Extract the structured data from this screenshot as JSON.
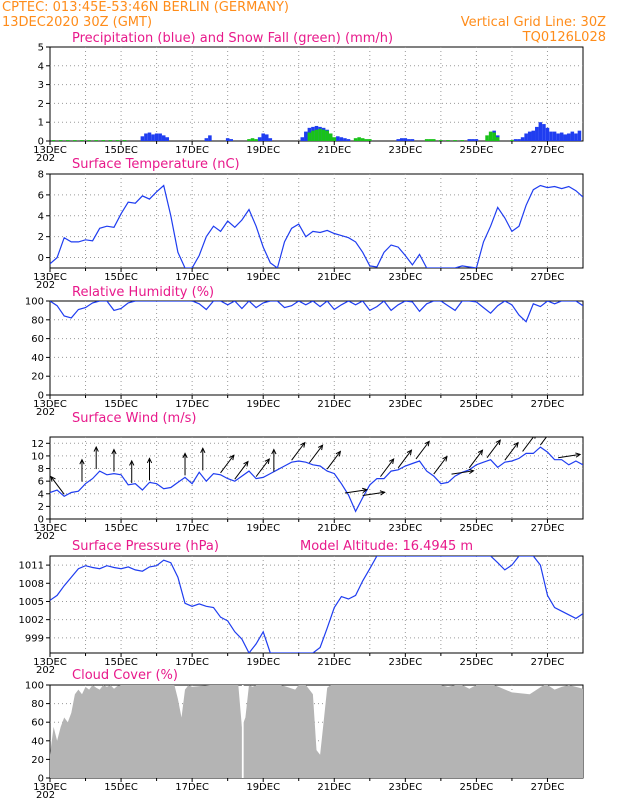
{
  "header": {
    "line1_left": "CPTEC:  013:45E-53:46N  BERLIN (GERMANY)",
    "line2_left": "13DEC2020 30Z (GMT)",
    "line2_right": "Vertical Grid Line: 30Z",
    "line3_right": "TQ0126L028"
  },
  "colors": {
    "header": "#ff8c1a",
    "title": "#e8198b",
    "series": "#1f3df0",
    "snow": "#19c219",
    "cloud": "#b4b4b4",
    "grid": "#9a9a9a"
  },
  "date_labels": [
    "13DEC",
    "15DEC",
    "17DEC",
    "19DEC",
    "21DEC",
    "23DEC",
    "25DEC",
    "27DEC"
  ],
  "year_fragment": "202",
  "chart_data": [
    {
      "type": "bar",
      "title": "Precipitation (blue) and Snow Fall (green) (mm/h)",
      "ylim": [
        0,
        5
      ],
      "yticks": [
        0,
        1,
        2,
        3,
        4,
        5
      ],
      "x_range": [
        0,
        15
      ],
      "series": [
        {
          "name": "Precipitation",
          "color_key": "series",
          "x": [
            2.6,
            2.7,
            2.8,
            2.9,
            3.0,
            3.1,
            3.2,
            3.3,
            4.4,
            4.5,
            5.0,
            5.1,
            5.9,
            6.0,
            6.1,
            6.2,
            7.1,
            7.2,
            7.3,
            7.4,
            7.5,
            7.6,
            7.7,
            7.8,
            7.9,
            8.0,
            8.1,
            8.2,
            8.3,
            8.4,
            9.8,
            9.9,
            10.0,
            10.1,
            10.2,
            11.8,
            11.9,
            12.0,
            12.4,
            12.5,
            12.6,
            13.1,
            13.2,
            13.3,
            13.4,
            13.5,
            13.6,
            13.7,
            13.8,
            13.9,
            14.0,
            14.1,
            14.2,
            14.3,
            14.4,
            14.5,
            14.6,
            14.7,
            14.8,
            14.9
          ],
          "values": [
            0.25,
            0.4,
            0.45,
            0.35,
            0.4,
            0.4,
            0.3,
            0.2,
            0.15,
            0.3,
            0.15,
            0.1,
            0.2,
            0.4,
            0.35,
            0.15,
            0.2,
            0.5,
            0.7,
            0.75,
            0.8,
            0.75,
            0.7,
            0.6,
            0.35,
            0.1,
            0.25,
            0.2,
            0.15,
            0.1,
            0.1,
            0.15,
            0.15,
            0.1,
            0.1,
            0.1,
            0.1,
            0.1,
            0.1,
            0.55,
            0.3,
            0.1,
            0.1,
            0.2,
            0.4,
            0.5,
            0.55,
            0.75,
            1.0,
            0.9,
            0.7,
            0.5,
            0.5,
            0.4,
            0.45,
            0.35,
            0.4,
            0.5,
            0.4,
            0.55
          ]
        },
        {
          "name": "Snow Fall",
          "color_key": "snow",
          "x": [
            0.1,
            0.3,
            0.5,
            0.7,
            0.9,
            1.1,
            1.3,
            1.5,
            1.7,
            1.9,
            2.1,
            5.6,
            5.7,
            5.8,
            7.3,
            7.4,
            7.5,
            7.6,
            7.7,
            7.8,
            7.9,
            8.0,
            8.6,
            8.7,
            8.8,
            8.9,
            9.0,
            10.6,
            10.7,
            10.8,
            11.0,
            11.2,
            11.4,
            11.6,
            12.3,
            12.4,
            12.5,
            12.6,
            13.0
          ],
          "values": [
            0.05,
            0.05,
            0.05,
            0.05,
            0.05,
            0.05,
            0.05,
            0.05,
            0.05,
            0.05,
            0.05,
            0.1,
            0.15,
            0.1,
            0.45,
            0.55,
            0.6,
            0.65,
            0.6,
            0.55,
            0.4,
            0.2,
            0.15,
            0.2,
            0.15,
            0.1,
            0.1,
            0.1,
            0.1,
            0.1,
            0.05,
            0.05,
            0.05,
            0.05,
            0.3,
            0.5,
            0.45,
            0.2,
            0.05
          ]
        }
      ]
    },
    {
      "type": "line",
      "title": "Surface Temperature (nC)",
      "ylim": [
        -1,
        8
      ],
      "yticks": [
        0,
        2,
        4,
        6,
        8
      ],
      "x_range": [
        0,
        15
      ],
      "x": [
        0,
        0.2,
        0.4,
        0.6,
        0.8,
        1.0,
        1.2,
        1.4,
        1.6,
        1.8,
        2.0,
        2.2,
        2.4,
        2.6,
        2.8,
        3.0,
        3.2,
        3.4,
        3.6,
        3.8,
        4.0,
        4.2,
        4.4,
        4.6,
        4.8,
        5.0,
        5.2,
        5.4,
        5.6,
        5.8,
        6.0,
        6.2,
        6.4,
        6.6,
        6.8,
        7.0,
        7.2,
        7.4,
        7.6,
        7.8,
        8.0,
        8.2,
        8.4,
        8.6,
        8.8,
        9.0,
        9.2,
        9.4,
        9.6,
        9.8,
        10.0,
        10.2,
        10.4,
        10.6,
        10.8,
        11.0,
        11.2,
        11.4,
        11.6,
        11.8,
        12.0,
        12.2,
        12.4,
        12.6,
        12.8,
        13.0,
        13.2,
        13.4,
        13.6,
        13.8,
        14.0,
        14.2,
        14.4,
        14.6,
        14.8,
        15.0
      ],
      "values": [
        -0.6,
        0,
        1.9,
        1.5,
        1.5,
        1.7,
        1.6,
        2.8,
        3.0,
        2.9,
        4.2,
        5.3,
        5.2,
        5.9,
        5.6,
        6.3,
        6.9,
        4.0,
        0.5,
        -1.0,
        -1.0,
        0.2,
        2.0,
        3.0,
        2.5,
        3.5,
        2.9,
        3.6,
        4.6,
        3.0,
        1.0,
        -0.5,
        -1.0,
        1.5,
        2.8,
        3.2,
        2.0,
        2.5,
        2.4,
        2.6,
        2.3,
        2.1,
        1.9,
        1.5,
        0.5,
        -0.8,
        -0.9,
        0.5,
        1.2,
        1.0,
        0.2,
        -0.7,
        0.3,
        -1.0,
        -1.0,
        -1.0,
        -1.0,
        -1.0,
        -0.8,
        -0.9,
        -1.0,
        1.5,
        3.0,
        4.8,
        3.8,
        2.5,
        3.0,
        5.0,
        6.5,
        6.9,
        6.7,
        6.8,
        6.6,
        6.8,
        6.4,
        5.8
      ],
      "gaps_below": -1
    },
    {
      "type": "line",
      "title": "Relative Humidity (%)",
      "ylim": [
        0,
        100
      ],
      "yticks": [
        0,
        20,
        40,
        60,
        80,
        100
      ],
      "x_range": [
        0,
        15
      ],
      "x": [
        0,
        0.2,
        0.4,
        0.6,
        0.8,
        1.0,
        1.2,
        1.4,
        1.6,
        1.8,
        2.0,
        2.2,
        2.4,
        2.6,
        2.8,
        3.0,
        3.2,
        3.4,
        3.6,
        3.8,
        4.0,
        4.2,
        4.4,
        4.6,
        4.8,
        5.0,
        5.2,
        5.4,
        5.6,
        5.8,
        6.0,
        6.2,
        6.4,
        6.6,
        6.8,
        7.0,
        7.2,
        7.4,
        7.6,
        7.8,
        8.0,
        8.2,
        8.4,
        8.6,
        8.8,
        9.0,
        9.2,
        9.4,
        9.6,
        9.8,
        10.0,
        10.2,
        10.4,
        10.6,
        10.8,
        11.0,
        11.2,
        11.4,
        11.6,
        11.8,
        12.0,
        12.2,
        12.4,
        12.6,
        12.8,
        13.0,
        13.2,
        13.4,
        13.6,
        13.8,
        14.0,
        14.2,
        14.4,
        14.6,
        14.8,
        15.0
      ],
      "values": [
        100,
        95,
        84,
        82,
        91,
        93,
        98,
        100,
        100,
        90,
        92,
        98,
        100,
        100,
        100,
        100,
        100,
        100,
        100,
        100,
        100,
        97,
        91,
        100,
        100,
        96,
        100,
        92,
        100,
        93,
        98,
        100,
        100,
        93,
        95,
        100,
        96,
        100,
        94,
        100,
        91,
        96,
        100,
        96,
        100,
        90,
        94,
        100,
        90,
        96,
        100,
        99,
        89,
        97,
        100,
        100,
        95,
        90,
        100,
        100,
        99,
        93,
        87,
        95,
        100,
        96,
        85,
        78,
        97,
        94,
        100,
        97,
        100,
        100,
        100,
        95
      ]
    },
    {
      "type": "line",
      "title": "Surface Wind (m/s)",
      "ylim": [
        0,
        13
      ],
      "yticks": [
        0,
        2,
        4,
        6,
        8,
        10,
        12
      ],
      "x_range": [
        0,
        15
      ],
      "x": [
        0,
        0.2,
        0.4,
        0.6,
        0.8,
        1.0,
        1.2,
        1.4,
        1.6,
        1.8,
        2.0,
        2.2,
        2.4,
        2.6,
        2.8,
        3.0,
        3.2,
        3.4,
        3.6,
        3.8,
        4.0,
        4.2,
        4.4,
        4.6,
        4.8,
        5.0,
        5.2,
        5.4,
        5.6,
        5.8,
        6.0,
        6.2,
        6.4,
        6.6,
        6.8,
        7.0,
        7.2,
        7.4,
        7.6,
        7.8,
        8.0,
        8.2,
        8.4,
        8.6,
        8.8,
        9.0,
        9.2,
        9.4,
        9.6,
        9.8,
        10.0,
        10.2,
        10.4,
        10.6,
        10.8,
        11.0,
        11.2,
        11.4,
        11.6,
        11.8,
        12.0,
        12.2,
        12.4,
        12.6,
        12.8,
        13.0,
        13.2,
        13.4,
        13.6,
        13.8,
        14.0,
        14.2,
        14.4,
        14.6,
        14.8,
        15.0
      ],
      "values": [
        4.2,
        4.6,
        3.6,
        4.2,
        4.4,
        5.6,
        6.4,
        7.6,
        7.0,
        7.2,
        7.0,
        5.4,
        5.6,
        4.6,
        5.8,
        5.6,
        4.8,
        5.0,
        5.8,
        6.6,
        5.6,
        7.4,
        6.0,
        7.2,
        7.0,
        6.4,
        6.0,
        6.8,
        7.6,
        6.4,
        6.6,
        7.2,
        7.8,
        8.4,
        9.0,
        9.2,
        9.0,
        8.6,
        8.4,
        7.6,
        7.2,
        5.6,
        3.8,
        1.2,
        3.4,
        5.4,
        6.4,
        6.4,
        7.6,
        7.8,
        8.4,
        8.8,
        9.2,
        7.6,
        6.8,
        5.6,
        5.8,
        6.8,
        7.4,
        7.8,
        8.6,
        9.0,
        9.4,
        8.2,
        9.0,
        9.2,
        9.6,
        10.4,
        10.4,
        11.4,
        10.6,
        9.4,
        9.4,
        8.6,
        9.2,
        8.6
      ],
      "barbs": [
        {
          "x": 0.4,
          "dir": "NW"
        },
        {
          "x": 0.9,
          "dir": "N"
        },
        {
          "x": 1.3,
          "dir": "N"
        },
        {
          "x": 1.8,
          "dir": "N"
        },
        {
          "x": 2.3,
          "dir": "N"
        },
        {
          "x": 2.8,
          "dir": "N"
        },
        {
          "x": 3.8,
          "dir": "N"
        },
        {
          "x": 4.3,
          "dir": "N"
        },
        {
          "x": 4.8,
          "dir": "NE"
        },
        {
          "x": 5.2,
          "dir": "NE"
        },
        {
          "x": 5.8,
          "dir": "NE"
        },
        {
          "x": 6.3,
          "dir": "N"
        },
        {
          "x": 6.8,
          "dir": "NE"
        },
        {
          "x": 7.3,
          "dir": "NE"
        },
        {
          "x": 7.8,
          "dir": "NE"
        },
        {
          "x": 8.3,
          "dir": "E"
        },
        {
          "x": 8.8,
          "dir": "E"
        },
        {
          "x": 9.3,
          "dir": "NE"
        },
        {
          "x": 9.8,
          "dir": "NE"
        },
        {
          "x": 10.3,
          "dir": "NE"
        },
        {
          "x": 10.8,
          "dir": "NE"
        },
        {
          "x": 11.3,
          "dir": "E"
        },
        {
          "x": 11.8,
          "dir": "NE"
        },
        {
          "x": 12.3,
          "dir": "NE"
        },
        {
          "x": 12.8,
          "dir": "NE"
        },
        {
          "x": 13.3,
          "dir": "NE"
        },
        {
          "x": 13.8,
          "dir": "NE"
        },
        {
          "x": 14.3,
          "dir": "E"
        }
      ]
    },
    {
      "type": "line",
      "title": "Surface Pressure (hPa)",
      "annotation": "Model Altitude: 16.4945 m",
      "ylim": [
        996.5,
        1012.5
      ],
      "yticks": [
        999,
        1002,
        1005,
        1008,
        1011
      ],
      "x_range": [
        0,
        15
      ],
      "x": [
        0,
        0.2,
        0.4,
        0.6,
        0.8,
        1.0,
        1.2,
        1.4,
        1.6,
        1.8,
        2.0,
        2.2,
        2.4,
        2.6,
        2.8,
        3.0,
        3.2,
        3.4,
        3.6,
        3.8,
        4.0,
        4.2,
        4.4,
        4.6,
        4.8,
        5.0,
        5.2,
        5.4,
        5.6,
        5.8,
        6.0,
        6.2,
        6.4,
        6.6,
        6.8,
        7.0,
        7.2,
        7.4,
        7.6,
        7.8,
        8.0,
        8.2,
        8.4,
        8.6,
        8.8,
        9.0,
        9.2,
        9.4,
        9.6,
        9.8,
        10.0,
        10.2,
        10.4,
        10.6,
        10.8,
        11.0,
        11.2,
        11.4,
        11.6,
        11.8,
        12.0,
        12.2,
        12.4,
        12.6,
        12.8,
        13.0,
        13.2,
        13.4,
        13.6,
        13.8,
        14.0,
        14.2,
        14.4,
        14.6,
        14.8,
        15.0
      ],
      "values": [
        1005.2,
        1006.0,
        1007.6,
        1009.0,
        1010.4,
        1010.9,
        1010.6,
        1010.4,
        1010.9,
        1010.6,
        1010.4,
        1010.7,
        1010.2,
        1010.0,
        1010.7,
        1010.9,
        1011.8,
        1011.4,
        1009.0,
        1004.7,
        1004.2,
        1004.6,
        1004.2,
        1004.0,
        1002.4,
        1001.8,
        1000.0,
        998.8,
        996.5,
        998.0,
        1000.0,
        996.5,
        996.5,
        996.5,
        996.5,
        996.5,
        996.5,
        996.5,
        997.4,
        1000.6,
        1004.0,
        1005.8,
        1005.4,
        1006.0,
        1008.4,
        1010.4,
        1012.5,
        1012.5,
        1012.5,
        1012.5,
        1012.5,
        1012.5,
        1012.5,
        1012.5,
        1012.5,
        1012.5,
        1012.5,
        1012.5,
        1012.5,
        1012.5,
        1012.5,
        1012.5,
        1012.5,
        1011.4,
        1010.2,
        1011.0,
        1012.5,
        1012.5,
        1012.5,
        1011.0,
        1006.0,
        1004.0,
        1003.4,
        1002.8,
        1002.2,
        1003.0
      ],
      "clip_above": 1012.5,
      "clip_below": 996.5
    },
    {
      "type": "area",
      "title": "Cloud Cover (%)",
      "ylim": [
        0,
        100
      ],
      "yticks": [
        0,
        20,
        40,
        60,
        80,
        100
      ],
      "x_range": [
        0,
        15
      ],
      "x": [
        0,
        0.1,
        0.2,
        0.3,
        0.4,
        0.5,
        0.6,
        0.7,
        0.8,
        0.9,
        1.0,
        1.1,
        1.2,
        1.3,
        1.4,
        1.5,
        1.6,
        1.7,
        1.8,
        1.9,
        2.0,
        2.5,
        3.0,
        3.5,
        3.6,
        3.7,
        3.8,
        3.9,
        4.0,
        4.5,
        5.0,
        5.2,
        5.3,
        5.4,
        5.5,
        5.6,
        5.7,
        5.8,
        6.0,
        6.5,
        6.9,
        7.0,
        7.1,
        7.2,
        7.3,
        7.4,
        7.5,
        7.6,
        7.7,
        7.8,
        7.9,
        8.0,
        8.5,
        9.0,
        9.5,
        10.0,
        10.5,
        11.0,
        11.2,
        11.4,
        11.6,
        11.8,
        12.0,
        12.5,
        13.0,
        13.5,
        13.7,
        13.9,
        14.0,
        14.2,
        14.4,
        14.6,
        14.8,
        15.0
      ],
      "values": [
        25,
        55,
        40,
        55,
        65,
        60,
        70,
        90,
        95,
        90,
        98,
        95,
        100,
        97,
        95,
        100,
        98,
        100,
        96,
        99,
        100,
        100,
        100,
        100,
        85,
        65,
        95,
        100,
        98,
        100,
        100,
        100,
        100,
        55,
        65,
        100,
        98,
        100,
        100,
        100,
        95,
        100,
        100,
        100,
        95,
        90,
        30,
        25,
        60,
        97,
        100,
        100,
        100,
        100,
        100,
        100,
        100,
        100,
        98,
        100,
        100,
        96,
        100,
        100,
        92,
        90,
        95,
        100,
        100,
        95,
        98,
        100,
        98,
        96
      ],
      "gaps": [
        [
          5.4,
          5.45
        ]
      ]
    }
  ]
}
